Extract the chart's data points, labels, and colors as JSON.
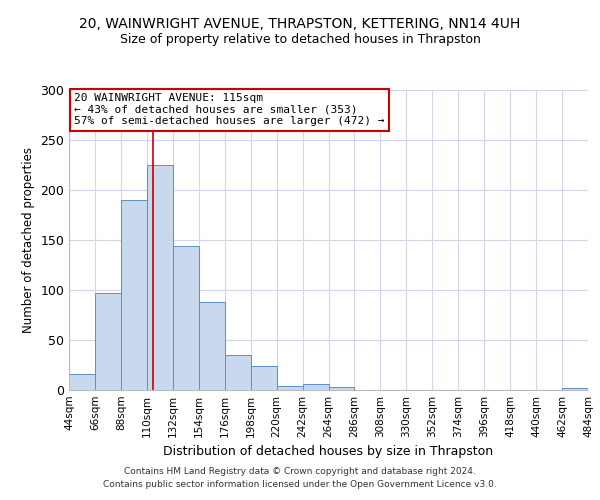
{
  "title": "20, WAINWRIGHT AVENUE, THRAPSTON, KETTERING, NN14 4UH",
  "subtitle": "Size of property relative to detached houses in Thrapston",
  "xlabel": "Distribution of detached houses by size in Thrapston",
  "ylabel": "Number of detached properties",
  "bar_values": [
    16,
    97,
    190,
    225,
    144,
    88,
    35,
    24,
    4,
    6,
    3,
    0,
    0,
    0,
    0,
    0,
    0,
    0,
    0,
    2
  ],
  "bin_edges": [
    44,
    66,
    88,
    110,
    132,
    154,
    176,
    198,
    220,
    242,
    264,
    286,
    308,
    330,
    352,
    374,
    396,
    418,
    440,
    462,
    484
  ],
  "tick_labels": [
    "44sqm",
    "66sqm",
    "88sqm",
    "110sqm",
    "132sqm",
    "154sqm",
    "176sqm",
    "198sqm",
    "220sqm",
    "242sqm",
    "264sqm",
    "286sqm",
    "308sqm",
    "330sqm",
    "352sqm",
    "374sqm",
    "396sqm",
    "418sqm",
    "440sqm",
    "462sqm",
    "484sqm"
  ],
  "bar_facecolor": "#c9d9ed",
  "bar_edgecolor": "#5b8fc9",
  "vline_x": 115,
  "vline_color": "#cc0000",
  "annotation_lines": [
    "20 WAINWRIGHT AVENUE: 115sqm",
    "← 43% of detached houses are smaller (353)",
    "57% of semi-detached houses are larger (472) →"
  ],
  "annotation_box_color": "#cc0000",
  "ylim": [
    0,
    300
  ],
  "yticks": [
    0,
    50,
    100,
    150,
    200,
    250,
    300
  ],
  "footer1": "Contains HM Land Registry data © Crown copyright and database right 2024.",
  "footer2": "Contains public sector information licensed under the Open Government Licence v3.0.",
  "bg_color": "#ffffff",
  "grid_color": "#d0d8e8",
  "title_fontsize": 10,
  "subtitle_fontsize": 9,
  "ylabel_fontsize": 8.5,
  "xlabel_fontsize": 9,
  "annot_fontsize": 8,
  "footer_fontsize": 6.5
}
